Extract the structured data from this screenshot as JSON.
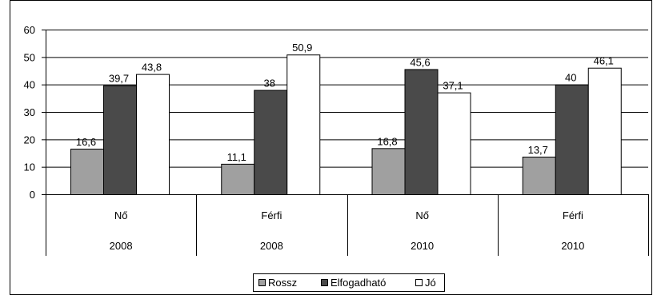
{
  "chart_data": {
    "type": "bar",
    "categories": [
      {
        "label": "Nő",
        "year": "2008"
      },
      {
        "label": "Férfi",
        "year": "2008"
      },
      {
        "label": "Nő",
        "year": "2010"
      },
      {
        "label": "Férfi",
        "year": "2010"
      }
    ],
    "series": [
      {
        "name": "Rossz",
        "color": "#a0a0a0",
        "values": [
          16.6,
          11.1,
          16.8,
          13.7
        ],
        "labels": [
          "16,6",
          "11,1",
          "16,8",
          "13,7"
        ]
      },
      {
        "name": "Elfogadható",
        "color": "#4a4a4a",
        "values": [
          39.7,
          38,
          45.6,
          40
        ],
        "labels": [
          "39,7",
          "38",
          "45,6",
          "40"
        ]
      },
      {
        "name": "Jó",
        "color": "#ffffff",
        "values": [
          43.8,
          50.9,
          37.1,
          46.1
        ],
        "labels": [
          "43,8",
          "50,9",
          "37,1",
          "46,1"
        ]
      }
    ],
    "yticks": [
      0,
      10,
      20,
      30,
      40,
      50,
      60
    ],
    "ylim": [
      0,
      60
    ],
    "grid": true,
    "legend": "bottom",
    "title": "",
    "xlabel": "",
    "ylabel": ""
  }
}
